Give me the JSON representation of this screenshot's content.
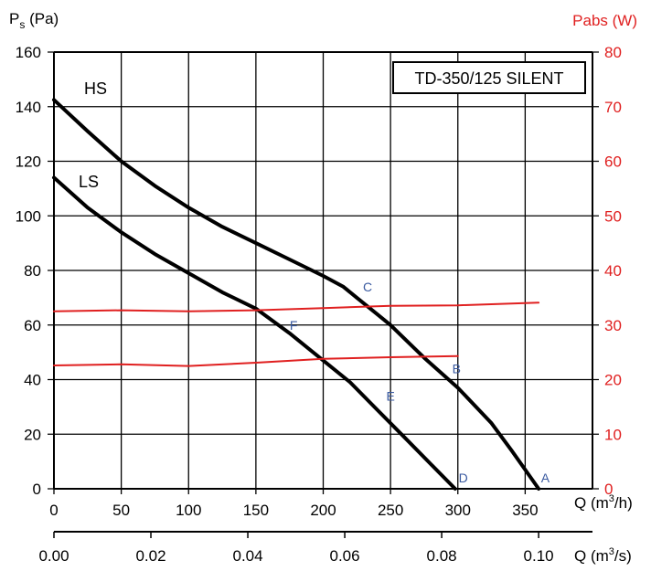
{
  "chart_data": {
    "type": "line",
    "title": "TD-350/125 SILENT",
    "ylabel_main": "P",
    "ylabel_sub": "s",
    "ylabel_unit": " (Pa)",
    "y2label": "Pabs (W)",
    "xlabel_prefix": "Q (m",
    "xlabel_suffix": "/h)",
    "x2label_prefix": "Q (m",
    "x2label_suffix": "/s)",
    "unit_exponent": "3",
    "xlim": [
      0,
      400
    ],
    "ylim": [
      0,
      160
    ],
    "y2lim": [
      0,
      80
    ],
    "x2lim": [
      0,
      0.1111
    ],
    "grid": true,
    "xticks": [
      "0",
      "50",
      "100",
      "150",
      "200",
      "250",
      "300",
      "350"
    ],
    "yticks": [
      "0",
      "20",
      "40",
      "60",
      "80",
      "100",
      "120",
      "140",
      "160"
    ],
    "y2ticks": [
      "0",
      "10",
      "20",
      "30",
      "40",
      "50",
      "60",
      "70",
      "80"
    ],
    "x2ticks": [
      "0.00",
      "0.02",
      "0.04",
      "0.06",
      "0.08",
      "0.10"
    ],
    "colors": {
      "pressure": "#000000",
      "power": "#e02020",
      "points": "#3a5aa0",
      "y2axis": "#e02020"
    },
    "series": [
      {
        "name": "HS",
        "axis": "left",
        "x": [
          0,
          25,
          50,
          75,
          100,
          125,
          150,
          175,
          200,
          215,
          225,
          240,
          250,
          275,
          300,
          325,
          340,
          350,
          360
        ],
        "y": [
          142.5,
          131,
          120,
          111,
          103,
          96,
          90,
          84,
          78,
          74,
          70,
          64,
          60,
          48,
          37,
          24,
          14,
          7,
          0
        ]
      },
      {
        "name": "LS",
        "axis": "left",
        "x": [
          0,
          25,
          50,
          75,
          100,
          125,
          150,
          175,
          200,
          220,
          240,
          260,
          280,
          298
        ],
        "y": [
          114,
          103,
          94,
          86,
          79,
          72,
          66,
          57,
          47,
          39,
          29,
          19,
          9,
          0
        ]
      },
      {
        "axis": "right",
        "x": [
          0,
          50,
          100,
          150,
          200,
          250,
          300,
          360
        ],
        "y": [
          32.5,
          32.7,
          32.5,
          32.7,
          33.1,
          33.5,
          33.6,
          34.1
        ]
      },
      {
        "axis": "right",
        "x": [
          0,
          50,
          100,
          150,
          200,
          250,
          300
        ],
        "y": [
          22.6,
          22.8,
          22.5,
          23.1,
          23.8,
          24.1,
          24.3
        ]
      }
    ],
    "point_labels": [
      {
        "label": "A",
        "x": 365,
        "y": 4
      },
      {
        "label": "B",
        "x": 299,
        "y": 44
      },
      {
        "label": "C",
        "x": 233,
        "y": 74
      },
      {
        "label": "D",
        "x": 304,
        "y": 4
      },
      {
        "label": "E",
        "x": 250,
        "y": 34
      },
      {
        "label": "F",
        "x": 178,
        "y": 60
      }
    ]
  }
}
